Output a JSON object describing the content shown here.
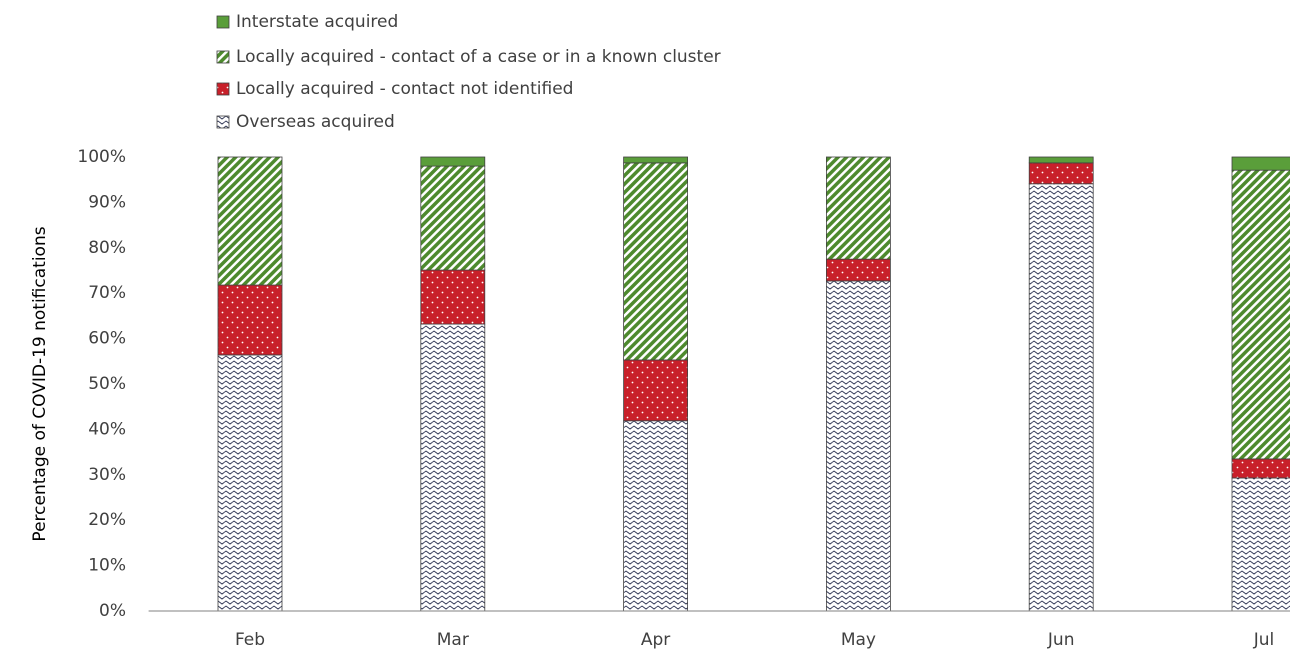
{
  "chart_data": {
    "type": "stacked_bar",
    "y_axis_label": "Percentage of COVID-19 notifications",
    "categories": [
      "Feb",
      "Mar",
      "Apr",
      "May",
      "Jun",
      "Jul"
    ],
    "series": [
      {
        "name": "Interstate acquired",
        "color": "#5a9e3a",
        "pattern": "solid",
        "values": [
          0,
          2.0,
          1.3,
          0,
          1.3,
          2.9
        ]
      },
      {
        "name": "Locally acquired - contact of a case or in a known cluster",
        "color": "#4e8a2e",
        "pattern": "diagonal",
        "values": [
          28.2,
          22.9,
          43.4,
          22.5,
          0,
          63.6
        ]
      },
      {
        "name": "Locally acquired - contact not identified",
        "color": "#c8202a",
        "pattern": "dots",
        "values": [
          15.4,
          11.9,
          13.4,
          4.8,
          4.6,
          4.2
        ]
      },
      {
        "name": "Overseas acquired",
        "color": "#2a3050",
        "pattern": "waves",
        "values": [
          56.4,
          63.2,
          41.9,
          72.7,
          94.1,
          29.3
        ]
      }
    ],
    "ylim": [
      0,
      100
    ],
    "yticks": [
      {
        "value": 0,
        "label": "0%"
      },
      {
        "value": 10,
        "label": "10%"
      },
      {
        "value": 20,
        "label": "20%"
      },
      {
        "value": 30,
        "label": "30%"
      },
      {
        "value": 40,
        "label": "40%"
      },
      {
        "value": 50,
        "label": "50%"
      },
      {
        "value": 60,
        "label": "60%"
      },
      {
        "value": 70,
        "label": "70%"
      },
      {
        "value": 80,
        "label": "80%"
      },
      {
        "value": 90,
        "label": "90%"
      },
      {
        "value": 100,
        "label": "100%"
      }
    ],
    "grid": false
  }
}
